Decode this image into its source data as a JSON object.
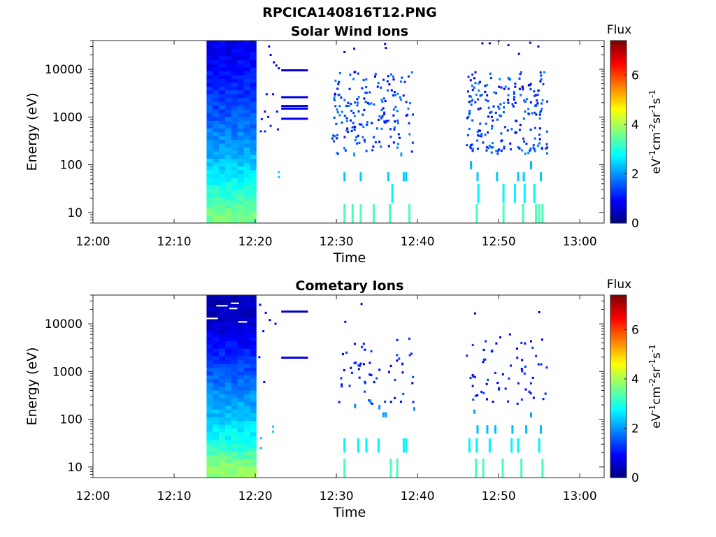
{
  "figure": {
    "title": "RPCICA140816T12.PNG"
  },
  "chart_data": [
    {
      "type": "heatmap",
      "title": "Solar Wind Ions",
      "xlabel": "Time",
      "ylabel": "Energy (eV)",
      "x_ticks": [
        "12:00",
        "12:10",
        "12:20",
        "12:30",
        "12:40",
        "12:50",
        "13:00"
      ],
      "xlim_minutes": [
        0,
        63
      ],
      "y_scale": "log",
      "y_ticks": [
        10,
        100,
        1000,
        10000
      ],
      "y_tick_labels": [
        "10",
        "100",
        "1000",
        "10000"
      ],
      "ylim": [
        6,
        40000
      ],
      "colorbar": {
        "title": "Flux",
        "label": "eV-1cm-2sr-1s-1",
        "ticks": [
          "0",
          "2",
          "4",
          "6"
        ],
        "range": [
          0,
          7.4
        ],
        "colormap": "jet"
      },
      "dense_block": {
        "t_start_min": 14.0,
        "t_end_min": 20.1,
        "profile_energy_vs_flux": [
          [
            10,
            3.6
          ],
          [
            30,
            3.0
          ],
          [
            100,
            2.4
          ],
          [
            300,
            2.0
          ],
          [
            1000,
            1.6
          ],
          [
            3000,
            1.3
          ],
          [
            10000,
            1.0
          ],
          [
            30000,
            0.8
          ]
        ]
      },
      "sparse_points": [
        {
          "t": 21.7,
          "e": 30000,
          "f": 0.6
        },
        {
          "t": 21.9,
          "e": 20000,
          "f": 0.6
        },
        {
          "t": 22.3,
          "e": 14000,
          "f": 0.6
        },
        {
          "t": 22.6,
          "e": 12000,
          "f": 0.6
        },
        {
          "t": 22.9,
          "e": 10500,
          "f": 0.7
        },
        {
          "t": 21.4,
          "e": 3000,
          "f": 0.9
        },
        {
          "t": 22.2,
          "e": 3000,
          "f": 0.9
        },
        {
          "t": 21.2,
          "e": 1300,
          "f": 1.0
        },
        {
          "t": 21.6,
          "e": 1000,
          "f": 1.0
        },
        {
          "t": 22.7,
          "e": 1300,
          "f": 1.0
        },
        {
          "t": 20.8,
          "e": 900,
          "f": 1.1
        },
        {
          "t": 21.9,
          "e": 650,
          "f": 1.1
        },
        {
          "t": 22.8,
          "e": 550,
          "f": 1.1
        },
        {
          "t": 21.2,
          "e": 500,
          "f": 1.2
        },
        {
          "t": 20.7,
          "e": 500,
          "f": 1.2
        },
        {
          "t": 22.9,
          "e": 55,
          "f": 2.4
        },
        {
          "t": 22.9,
          "e": 70,
          "f": 2.4
        }
      ],
      "streaks": [
        {
          "t0": 23.2,
          "t1": 26.5,
          "e": 9500,
          "f": 0.6
        },
        {
          "t0": 23.2,
          "t1": 26.5,
          "e": 2600,
          "f": 0.7
        },
        {
          "t0": 23.2,
          "t1": 26.5,
          "e": 1700,
          "f": 0.8
        },
        {
          "t0": 23.2,
          "t1": 26.5,
          "e": 1500,
          "f": 0.8
        },
        {
          "t0": 23.2,
          "t1": 26.5,
          "e": 920,
          "f": 0.9
        }
      ],
      "clusters": [
        {
          "t0": 29.5,
          "t1": 39.5,
          "count": 175,
          "emin": 170,
          "emax": 9000,
          "fmin": 0.8,
          "fmax": 1.9,
          "seed": 11
        },
        {
          "t0": 46.0,
          "t1": 56.0,
          "count": 215,
          "emin": 170,
          "emax": 9000,
          "fmin": 0.8,
          "fmax": 2.0,
          "seed": 23
        }
      ],
      "highE_points": [
        {
          "t": 31.0,
          "e": 23000,
          "f": 0.6
        },
        {
          "t": 32.2,
          "e": 27000,
          "f": 0.6
        },
        {
          "t": 36.0,
          "e": 34000,
          "f": 0.6
        },
        {
          "t": 36.1,
          "e": 28000,
          "f": 0.6
        },
        {
          "t": 48.0,
          "e": 35000,
          "f": 0.6
        },
        {
          "t": 48.9,
          "e": 35000,
          "f": 0.6
        },
        {
          "t": 50.0,
          "e": 40000,
          "f": 0.6
        },
        {
          "t": 51.2,
          "e": 32000,
          "f": 0.6
        },
        {
          "t": 53.9,
          "e": 36000,
          "f": 0.6
        },
        {
          "t": 54.9,
          "e": 30000,
          "f": 0.6
        },
        {
          "t": 52.5,
          "e": 21000,
          "f": 0.6
        }
      ],
      "low_bars": [
        {
          "t": 31.0,
          "e0": 45,
          "e1": 70,
          "f": 2.4
        },
        {
          "t": 33.0,
          "e0": 45,
          "e1": 70,
          "f": 2.4
        },
        {
          "t": 36.4,
          "e0": 45,
          "e1": 70,
          "f": 2.4
        },
        {
          "t": 38.3,
          "e0": 45,
          "e1": 70,
          "f": 2.4
        },
        {
          "t": 38.6,
          "e0": 45,
          "e1": 70,
          "f": 2.4
        },
        {
          "t": 47.4,
          "e0": 45,
          "e1": 70,
          "f": 2.4
        },
        {
          "t": 49.8,
          "e0": 45,
          "e1": 70,
          "f": 2.4
        },
        {
          "t": 52.4,
          "e0": 45,
          "e1": 70,
          "f": 2.4
        },
        {
          "t": 53.1,
          "e0": 45,
          "e1": 70,
          "f": 2.4
        },
        {
          "t": 55.2,
          "e0": 45,
          "e1": 70,
          "f": 2.4
        },
        {
          "t": 46.6,
          "e0": 80,
          "e1": 120,
          "f": 2.2
        },
        {
          "t": 54.0,
          "e0": 80,
          "e1": 120,
          "f": 2.2
        },
        {
          "t": 32.2,
          "e0": 150,
          "e1": 180,
          "f": 2.1
        },
        {
          "t": 38.0,
          "e0": 150,
          "e1": 180,
          "f": 2.1
        },
        {
          "t": 36.9,
          "e0": 16,
          "e1": 40,
          "f": 2.7
        },
        {
          "t": 47.5,
          "e0": 16,
          "e1": 40,
          "f": 2.7
        },
        {
          "t": 50.6,
          "e0": 16,
          "e1": 40,
          "f": 2.7
        },
        {
          "t": 52.0,
          "e0": 16,
          "e1": 40,
          "f": 2.7
        },
        {
          "t": 53.2,
          "e0": 16,
          "e1": 40,
          "f": 2.7
        },
        {
          "t": 54.4,
          "e0": 16,
          "e1": 40,
          "f": 2.7
        },
        {
          "t": 31.0,
          "e0": 6,
          "e1": 15,
          "f": 3.3
        },
        {
          "t": 32.0,
          "e0": 6,
          "e1": 15,
          "f": 3.3
        },
        {
          "t": 33.0,
          "e0": 6,
          "e1": 15,
          "f": 3.3
        },
        {
          "t": 34.6,
          "e0": 6,
          "e1": 15,
          "f": 3.3
        },
        {
          "t": 36.6,
          "e0": 6,
          "e1": 15,
          "f": 3.3
        },
        {
          "t": 39.0,
          "e0": 6,
          "e1": 15,
          "f": 3.3
        },
        {
          "t": 47.3,
          "e0": 6,
          "e1": 15,
          "f": 3.3
        },
        {
          "t": 50.6,
          "e0": 6,
          "e1": 15,
          "f": 3.3
        },
        {
          "t": 53.0,
          "e0": 6,
          "e1": 15,
          "f": 3.3
        },
        {
          "t": 54.6,
          "e0": 6,
          "e1": 15,
          "f": 3.3
        },
        {
          "t": 55.0,
          "e0": 6,
          "e1": 15,
          "f": 3.3
        },
        {
          "t": 55.4,
          "e0": 6,
          "e1": 15,
          "f": 3.3
        }
      ]
    },
    {
      "type": "heatmap",
      "title": "Cometary Ions",
      "xlabel": "Time",
      "ylabel": "Energy (eV)",
      "x_ticks": [
        "12:00",
        "12:10",
        "12:20",
        "12:30",
        "12:40",
        "12:50",
        "13:00"
      ],
      "xlim_minutes": [
        0,
        63
      ],
      "y_scale": "log",
      "y_ticks": [
        10,
        100,
        1000,
        10000
      ],
      "y_tick_labels": [
        "10",
        "100",
        "1000",
        "10000"
      ],
      "ylim": [
        6,
        40000
      ],
      "colorbar": {
        "title": "Flux",
        "label": "eV-1cm-2sr-1s-1",
        "ticks": [
          "0",
          "2",
          "4",
          "6"
        ],
        "range": [
          0,
          7.4
        ],
        "colormap": "jet"
      },
      "dense_block": {
        "t_start_min": 14.0,
        "t_end_min": 20.1,
        "profile_energy_vs_flux": [
          [
            10,
            3.8
          ],
          [
            30,
            3.0
          ],
          [
            100,
            2.4
          ],
          [
            300,
            2.0
          ],
          [
            1000,
            1.5
          ],
          [
            3000,
            1.1
          ],
          [
            10000,
            0.6
          ],
          [
            30000,
            0.4
          ]
        ]
      },
      "sparse_points": [
        {
          "t": 20.6,
          "e": 25000,
          "f": 0.6
        },
        {
          "t": 21.3,
          "e": 17000,
          "f": 0.6
        },
        {
          "t": 21.8,
          "e": 12000,
          "f": 0.6
        },
        {
          "t": 22.5,
          "e": 10000,
          "f": 0.6
        },
        {
          "t": 21.0,
          "e": 7000,
          "f": 0.7
        },
        {
          "t": 20.5,
          "e": 2000,
          "f": 0.8
        },
        {
          "t": 21.1,
          "e": 600,
          "f": 1.0
        },
        {
          "t": 22.2,
          "e": 55,
          "f": 2.4
        },
        {
          "t": 22.2,
          "e": 70,
          "f": 2.4
        },
        {
          "t": 20.7,
          "e": 25,
          "f": 2.3
        },
        {
          "t": 20.7,
          "e": 40,
          "f": 2.3
        }
      ],
      "streaks": [
        {
          "t0": 23.2,
          "t1": 26.5,
          "e": 18000,
          "f": 0.6
        },
        {
          "t0": 23.2,
          "t1": 26.5,
          "e": 1950,
          "f": 0.8
        }
      ],
      "clusters": [
        {
          "t0": 30.0,
          "t1": 39.5,
          "count": 55,
          "emin": 200,
          "emax": 5000,
          "fmin": 0.8,
          "fmax": 1.5,
          "seed": 37
        },
        {
          "t0": 46.0,
          "t1": 56.0,
          "count": 60,
          "emin": 200,
          "emax": 5000,
          "fmin": 0.8,
          "fmax": 1.5,
          "seed": 53
        }
      ],
      "highE_points": [
        {
          "t": 33.1,
          "e": 26000,
          "f": 0.6
        },
        {
          "t": 31.1,
          "e": 11000,
          "f": 0.6
        },
        {
          "t": 47.1,
          "e": 16500,
          "f": 0.6
        },
        {
          "t": 51.4,
          "e": 6000,
          "f": 0.6
        },
        {
          "t": 55.0,
          "e": 17500,
          "f": 0.6
        },
        {
          "t": 50.2,
          "e": 5200,
          "f": 0.6
        }
      ],
      "low_bars": [
        {
          "t": 32.3,
          "e0": 170,
          "e1": 210,
          "f": 2.0
        },
        {
          "t": 34.2,
          "e0": 210,
          "e1": 260,
          "f": 2.0
        },
        {
          "t": 35.3,
          "e0": 160,
          "e1": 200,
          "f": 2.0
        },
        {
          "t": 39.6,
          "e0": 150,
          "e1": 180,
          "f": 2.0
        },
        {
          "t": 35.8,
          "e0": 110,
          "e1": 140,
          "f": 2.1
        },
        {
          "t": 36.1,
          "e0": 110,
          "e1": 140,
          "f": 2.1
        },
        {
          "t": 47.0,
          "e0": 130,
          "e1": 160,
          "f": 2.1
        },
        {
          "t": 54.0,
          "e0": 110,
          "e1": 140,
          "f": 2.1
        },
        {
          "t": 47.4,
          "e0": 50,
          "e1": 75,
          "f": 2.3
        },
        {
          "t": 48.6,
          "e0": 50,
          "e1": 75,
          "f": 2.3
        },
        {
          "t": 49.6,
          "e0": 50,
          "e1": 75,
          "f": 2.3
        },
        {
          "t": 51.7,
          "e0": 50,
          "e1": 75,
          "f": 2.3
        },
        {
          "t": 53.4,
          "e0": 50,
          "e1": 75,
          "f": 2.3
        },
        {
          "t": 55.2,
          "e0": 50,
          "e1": 75,
          "f": 2.3
        },
        {
          "t": 31.0,
          "e0": 20,
          "e1": 40,
          "f": 2.7
        },
        {
          "t": 32.7,
          "e0": 20,
          "e1": 40,
          "f": 2.7
        },
        {
          "t": 33.7,
          "e0": 20,
          "e1": 40,
          "f": 2.7
        },
        {
          "t": 35.2,
          "e0": 20,
          "e1": 40,
          "f": 2.7
        },
        {
          "t": 38.3,
          "e0": 20,
          "e1": 40,
          "f": 2.7
        },
        {
          "t": 38.6,
          "e0": 20,
          "e1": 40,
          "f": 2.7
        },
        {
          "t": 46.4,
          "e0": 20,
          "e1": 40,
          "f": 2.7
        },
        {
          "t": 47.3,
          "e0": 20,
          "e1": 40,
          "f": 2.7
        },
        {
          "t": 48.9,
          "e0": 20,
          "e1": 40,
          "f": 2.7
        },
        {
          "t": 51.6,
          "e0": 20,
          "e1": 40,
          "f": 2.7
        },
        {
          "t": 52.4,
          "e0": 20,
          "e1": 40,
          "f": 2.7
        },
        {
          "t": 55.0,
          "e0": 20,
          "e1": 40,
          "f": 2.7
        },
        {
          "t": 31.0,
          "e0": 6,
          "e1": 15,
          "f": 3.3
        },
        {
          "t": 36.7,
          "e0": 6,
          "e1": 15,
          "f": 3.3
        },
        {
          "t": 37.5,
          "e0": 6,
          "e1": 15,
          "f": 3.3
        },
        {
          "t": 47.2,
          "e0": 6,
          "e1": 15,
          "f": 3.3
        },
        {
          "t": 48.1,
          "e0": 6,
          "e1": 15,
          "f": 3.3
        },
        {
          "t": 50.5,
          "e0": 6,
          "e1": 15,
          "f": 3.3
        },
        {
          "t": 52.8,
          "e0": 6,
          "e1": 15,
          "f": 3.3
        },
        {
          "t": 55.4,
          "e0": 6,
          "e1": 15,
          "f": 3.3
        }
      ]
    }
  ]
}
